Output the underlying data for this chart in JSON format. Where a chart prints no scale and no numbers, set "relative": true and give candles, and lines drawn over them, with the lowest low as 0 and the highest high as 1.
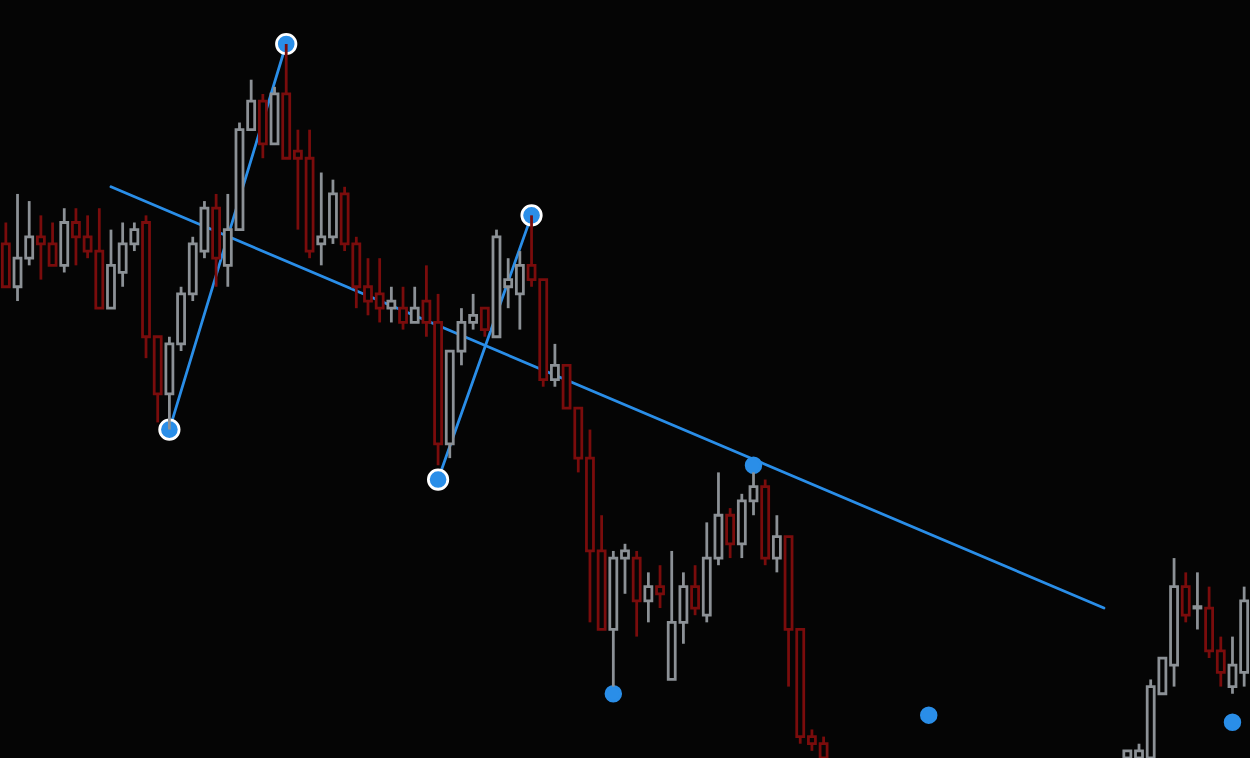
{
  "chart_data": {
    "type": "candlestick",
    "relative": true,
    "categories": [
      null,
      null,
      null,
      null,
      null,
      null,
      null,
      null,
      null,
      null,
      null,
      null,
      null,
      null,
      null,
      null,
      null,
      null,
      null,
      null,
      null,
      null,
      null,
      null,
      null,
      null,
      null,
      null,
      null,
      null,
      null,
      null,
      null,
      null,
      null,
      null,
      null,
      null,
      null,
      null,
      null,
      null,
      null,
      null,
      null,
      null,
      null,
      null,
      null,
      null,
      null,
      null,
      null,
      null,
      null,
      null,
      null,
      null,
      null,
      null,
      null,
      null,
      null,
      null,
      null,
      null,
      null,
      null,
      null,
      null,
      null,
      null,
      null,
      null,
      null,
      null,
      null,
      null,
      null,
      null,
      null,
      null,
      null,
      null,
      null,
      null,
      null,
      null,
      null,
      null,
      null,
      null,
      null,
      null,
      null,
      null,
      null,
      null,
      null,
      null,
      null,
      null,
      null,
      null,
      null,
      null,
      null
    ],
    "ohlc": [
      [
        0.72,
        0.75,
        0.66,
        0.66
      ],
      [
        0.66,
        0.79,
        0.64,
        0.7
      ],
      [
        0.7,
        0.78,
        0.69,
        0.73
      ],
      [
        0.73,
        0.76,
        0.67,
        0.72
      ],
      [
        0.72,
        0.75,
        0.69,
        0.69
      ],
      [
        0.69,
        0.77,
        0.68,
        0.75
      ],
      [
        0.75,
        0.77,
        0.69,
        0.73
      ],
      [
        0.73,
        0.76,
        0.7,
        0.71
      ],
      [
        0.71,
        0.77,
        0.63,
        0.63
      ],
      [
        0.63,
        0.74,
        0.63,
        0.69
      ],
      [
        0.68,
        0.75,
        0.66,
        0.72
      ],
      [
        0.72,
        0.75,
        0.71,
        0.74
      ],
      [
        0.75,
        0.76,
        0.56,
        0.59
      ],
      [
        0.59,
        0.59,
        0.47,
        0.51
      ],
      [
        0.51,
        0.59,
        0.46,
        0.58
      ],
      [
        0.58,
        0.66,
        0.57,
        0.65
      ],
      [
        0.65,
        0.73,
        0.64,
        0.72
      ],
      [
        0.71,
        0.78,
        0.7,
        0.77
      ],
      [
        0.77,
        0.79,
        0.66,
        0.7
      ],
      [
        0.69,
        0.79,
        0.66,
        0.74
      ],
      [
        0.74,
        0.89,
        0.74,
        0.88
      ],
      [
        0.88,
        0.95,
        0.88,
        0.92
      ],
      [
        0.92,
        0.93,
        0.84,
        0.86
      ],
      [
        0.86,
        0.94,
        0.86,
        0.93
      ],
      [
        0.93,
        1.0,
        0.84,
        0.84
      ],
      [
        0.85,
        0.88,
        0.74,
        0.84
      ],
      [
        0.84,
        0.88,
        0.7,
        0.71
      ],
      [
        0.72,
        0.82,
        0.69,
        0.73
      ],
      [
        0.73,
        0.81,
        0.72,
        0.79
      ],
      [
        0.79,
        0.8,
        0.71,
        0.72
      ],
      [
        0.72,
        0.73,
        0.63,
        0.66
      ],
      [
        0.66,
        0.7,
        0.62,
        0.64
      ],
      [
        0.65,
        0.7,
        0.61,
        0.63
      ],
      [
        0.63,
        0.66,
        0.61,
        0.64
      ],
      [
        0.63,
        0.66,
        0.6,
        0.61
      ],
      [
        0.61,
        0.66,
        0.61,
        0.63
      ],
      [
        0.64,
        0.69,
        0.59,
        0.61
      ],
      [
        0.61,
        0.65,
        0.41,
        0.44
      ],
      [
        0.44,
        0.57,
        0.42,
        0.57
      ],
      [
        0.57,
        0.63,
        0.55,
        0.61
      ],
      [
        0.61,
        0.65,
        0.6,
        0.62
      ],
      [
        0.63,
        0.63,
        0.59,
        0.6
      ],
      [
        0.59,
        0.74,
        0.59,
        0.73
      ],
      [
        0.66,
        0.7,
        0.63,
        0.67
      ],
      [
        0.65,
        0.71,
        0.6,
        0.69
      ],
      [
        0.69,
        0.76,
        0.66,
        0.67
      ],
      [
        0.67,
        0.67,
        0.52,
        0.53
      ],
      [
        0.53,
        0.58,
        0.52,
        0.55
      ],
      [
        0.55,
        0.55,
        0.49,
        0.49
      ],
      [
        0.49,
        0.49,
        0.4,
        0.42
      ],
      [
        0.42,
        0.46,
        0.19,
        0.29
      ],
      [
        0.29,
        0.34,
        0.18,
        0.18
      ],
      [
        0.18,
        0.29,
        0.1,
        0.28
      ],
      [
        0.28,
        0.3,
        0.23,
        0.29
      ],
      [
        0.28,
        0.29,
        0.17,
        0.22
      ],
      [
        0.22,
        0.26,
        0.19,
        0.24
      ],
      [
        0.24,
        0.27,
        0.21,
        0.23
      ],
      [
        0.11,
        0.29,
        0.11,
        0.19
      ],
      [
        0.19,
        0.26,
        0.16,
        0.24
      ],
      [
        0.24,
        0.27,
        0.2,
        0.21
      ],
      [
        0.2,
        0.33,
        0.19,
        0.28
      ],
      [
        0.28,
        0.4,
        0.27,
        0.34
      ],
      [
        0.34,
        0.35,
        0.28,
        0.3
      ],
      [
        0.3,
        0.37,
        0.28,
        0.36
      ],
      [
        0.36,
        0.4,
        0.34,
        0.38
      ],
      [
        0.38,
        0.39,
        0.27,
        0.28
      ],
      [
        0.28,
        0.34,
        0.26,
        0.31
      ],
      [
        0.31,
        0.31,
        0.1,
        0.18
      ],
      [
        0.18,
        0.18,
        0.02,
        0.03
      ],
      [
        0.03,
        0.04,
        0.01,
        0.02
      ],
      [
        0.02,
        0.03,
        0,
        0
      ],
      null,
      null,
      null,
      null,
      null,
      null,
      null,
      null,
      null,
      null,
      null,
      null,
      null,
      null,
      null,
      null,
      null,
      null,
      null,
      null,
      null,
      null,
      null,
      null,
      null,
      [
        0,
        0.01,
        0,
        0.01
      ],
      [
        0,
        0.02,
        0,
        0.01
      ],
      [
        0,
        0.11,
        0,
        0.1
      ],
      [
        0.09,
        0.14,
        0.09,
        0.14
      ],
      [
        0.13,
        0.28,
        0.1,
        0.24
      ],
      [
        0.24,
        0.26,
        0.19,
        0.2
      ],
      [
        0.21,
        0.26,
        0.18,
        0.21
      ],
      [
        0.21,
        0.24,
        0.14,
        0.15
      ],
      [
        0.15,
        0.17,
        0.1,
        0.12
      ],
      [
        0.1,
        0.17,
        0.09,
        0.13
      ],
      [
        0.12,
        0.24,
        0.1,
        0.22
      ]
    ],
    "colors": [
      "#7a0c0c",
      "#8c9196",
      "#8c9196",
      "#7a0c0c",
      "#7a0c0c",
      "#8c9196",
      "#7a0c0c",
      "#7a0c0c",
      "#7a0c0c",
      "#8c9196",
      "#8c9196",
      "#8c9196",
      "#7a0c0c",
      "#7a0c0c",
      "#8c9196",
      "#8c9196",
      "#8c9196",
      "#8c9196",
      "#7a0c0c",
      "#8c9196",
      "#8c9196",
      "#8c9196",
      "#7a0c0c",
      "#8c9196",
      "#7a0c0c",
      "#7a0c0c",
      "#7a0c0c",
      "#8c9196",
      "#8c9196",
      "#7a0c0c",
      "#7a0c0c",
      "#7a0c0c",
      "#7a0c0c",
      "#8c9196",
      "#7a0c0c",
      "#8c9196",
      "#7a0c0c",
      "#7a0c0c",
      "#8c9196",
      "#8c9196",
      "#8c9196",
      "#7a0c0c",
      "#8c9196",
      "#8c9196",
      "#8c9196",
      "#7a0c0c",
      "#7a0c0c",
      "#8c9196",
      "#7a0c0c",
      "#7a0c0c",
      "#7a0c0c",
      "#7a0c0c",
      "#8c9196",
      "#8c9196",
      "#7a0c0c",
      "#8c9196",
      "#7a0c0c",
      "#8c9196",
      "#8c9196",
      "#7a0c0c",
      "#8c9196",
      "#8c9196",
      "#7a0c0c",
      "#8c9196",
      "#8c9196",
      "#7a0c0c",
      "#8c9196",
      "#7a0c0c",
      "#7a0c0c",
      "#7a0c0c",
      "#7a0c0c",
      null,
      null,
      null,
      null,
      null,
      null,
      null,
      null,
      null,
      null,
      null,
      null,
      null,
      null,
      null,
      null,
      null,
      null,
      null,
      null,
      null,
      null,
      null,
      null,
      null,
      "#8c9196",
      "#8c9196",
      "#8c9196",
      "#8c9196",
      "#8c9196",
      "#7a0c0c",
      "#8c9196",
      "#7a0c0c",
      "#7a0c0c",
      "#8c9196",
      "#8c9196"
    ],
    "series": [
      {
        "type": "line",
        "color": "#2a8ee8",
        "marker": "none",
        "values": [
          null,
          null,
          null,
          null,
          null,
          null,
          null,
          null,
          null,
          0.8,
          null,
          null,
          null,
          null,
          null,
          null,
          null,
          null,
          null,
          null,
          null,
          null,
          null,
          null,
          null,
          null,
          null,
          null,
          null,
          null,
          null,
          null,
          null,
          null,
          null,
          null,
          null,
          null,
          null,
          null,
          null,
          null,
          null,
          null,
          null,
          null,
          null,
          null,
          null,
          null,
          null,
          null,
          null,
          null,
          null,
          null,
          null,
          null,
          null,
          null,
          null,
          null,
          null,
          null,
          null,
          null,
          null,
          null,
          null,
          null,
          null,
          null,
          null,
          null,
          null,
          null,
          null,
          null,
          null,
          null,
          null,
          null,
          null,
          null,
          null,
          null,
          null,
          null,
          null,
          null,
          null,
          null,
          null,
          null,
          0.21,
          null,
          null,
          null,
          null,
          null,
          null,
          null,
          null,
          null,
          null,
          null,
          null
        ]
      },
      {
        "type": "line",
        "color": "#2a8ee8",
        "marker": "circle",
        "values": [
          null,
          null,
          null,
          null,
          null,
          null,
          null,
          null,
          null,
          null,
          null,
          null,
          null,
          null,
          0.46,
          null,
          null,
          null,
          null,
          null,
          null,
          null,
          null,
          null,
          1.0,
          null,
          null,
          null,
          null,
          null,
          null,
          null,
          null,
          null,
          null,
          null,
          null,
          null,
          null,
          null,
          null,
          null,
          null,
          null,
          null,
          null,
          null,
          null,
          null,
          null,
          null,
          null,
          null,
          null,
          null,
          null,
          null,
          null,
          null,
          null,
          null,
          null,
          null,
          null,
          null,
          null,
          null,
          null,
          null,
          null,
          null,
          null,
          null,
          null,
          null,
          null,
          null,
          null,
          null,
          null,
          null,
          null,
          null,
          null,
          null,
          null,
          null,
          null,
          null,
          null,
          null,
          null,
          null,
          null,
          null,
          null,
          null,
          null,
          null,
          null,
          null,
          null,
          null,
          null,
          null,
          null,
          null
        ]
      },
      {
        "type": "line",
        "color": "#2a8ee8",
        "marker": "circle",
        "values": [
          null,
          null,
          null,
          null,
          null,
          null,
          null,
          null,
          null,
          null,
          null,
          null,
          null,
          null,
          null,
          null,
          null,
          null,
          null,
          null,
          null,
          null,
          null,
          null,
          null,
          null,
          null,
          null,
          null,
          null,
          null,
          null,
          null,
          null,
          null,
          null,
          null,
          0.39,
          null,
          null,
          null,
          null,
          null,
          null,
          null,
          0.76,
          null,
          null,
          null,
          null,
          null,
          null,
          null,
          null,
          null,
          null,
          null,
          null,
          null,
          null,
          null,
          null,
          null,
          null,
          null,
          null,
          null,
          null,
          null,
          null,
          null,
          null,
          null,
          null,
          null,
          null,
          null,
          null,
          null,
          null,
          null,
          null,
          null,
          null,
          null,
          null,
          null,
          null,
          null,
          null,
          null,
          null,
          null,
          null,
          null,
          null,
          null,
          null,
          null,
          null,
          null,
          null,
          null,
          null,
          null,
          null,
          null
        ]
      },
      {
        "type": "scatter",
        "color": "#2a8ee8",
        "marker": "circle",
        "values": [
          null,
          null,
          null,
          null,
          null,
          null,
          null,
          null,
          null,
          null,
          null,
          null,
          null,
          null,
          null,
          null,
          null,
          null,
          null,
          null,
          null,
          null,
          null,
          null,
          null,
          null,
          null,
          null,
          null,
          null,
          null,
          null,
          null,
          null,
          null,
          null,
          null,
          null,
          null,
          null,
          null,
          null,
          null,
          null,
          null,
          null,
          null,
          null,
          null,
          null,
          null,
          null,
          0.09,
          null,
          null,
          null,
          null,
          null,
          null,
          null,
          null,
          null,
          null,
          null,
          0.41,
          null,
          null,
          null,
          null,
          null,
          null,
          null,
          null,
          null,
          null,
          null,
          null,
          null,
          null,
          0.06,
          null,
          null,
          null,
          null,
          null,
          null,
          null,
          null,
          null,
          null,
          null,
          null,
          null,
          null,
          null,
          null,
          null,
          null,
          null,
          null,
          null,
          null,
          null,
          null,
          null,
          0.05,
          null
        ]
      }
    ]
  }
}
